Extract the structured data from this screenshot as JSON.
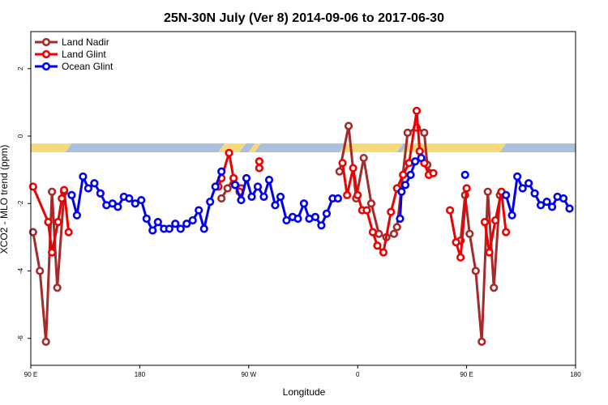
{
  "chart_data": {
    "type": "line",
    "title": "25N-30N July (Ver 8)   2014-09-06 to 2017-06-30",
    "xlabel": "Longitude",
    "ylabel": "XCO2 - MLO trend (ppm)",
    "xlim": [
      0,
      360
    ],
    "ylim": [
      -6.8,
      3.1
    ],
    "xticks": [
      {
        "pos": 0,
        "label": "90 E"
      },
      {
        "pos": 72,
        "label": "180"
      },
      {
        "pos": 144,
        "label": "90 W"
      },
      {
        "pos": 216,
        "label": "0"
      },
      {
        "pos": 288,
        "label": "90 E"
      },
      {
        "pos": 360,
        "label": "180"
      }
    ],
    "yticks": [
      {
        "value": 2,
        "label": "2"
      },
      {
        "value": 0,
        "label": "0"
      },
      {
        "value": -2,
        "label": "-2"
      },
      {
        "value": -4,
        "label": "-4"
      },
      {
        "value": -6,
        "label": "-6"
      }
    ],
    "legend_position": "top-left",
    "grid": false,
    "surface_band": {
      "y_range": [
        -0.48,
        -0.22
      ],
      "colors": {
        "land": "#f5d97a",
        "ocean": "#a9bfdc"
      },
      "segments": [
        {
          "x0": 0,
          "x1": 25,
          "type": "land"
        },
        {
          "x0": 25,
          "x1": 126,
          "type": "ocean"
        },
        {
          "x0": 126,
          "x1": 140,
          "type": "land"
        },
        {
          "x0": 140,
          "x1": 146,
          "type": "ocean"
        },
        {
          "x0": 146,
          "x1": 150,
          "type": "land"
        },
        {
          "x0": 150,
          "x1": 206,
          "type": "ocean"
        },
        {
          "x0": 206,
          "x1": 244,
          "type": "land"
        },
        {
          "x0": 244,
          "x1": 247,
          "type": "ocean"
        },
        {
          "x0": 247,
          "x1": 312,
          "type": "land"
        },
        {
          "x0": 312,
          "x1": 360,
          "type": "ocean"
        }
      ]
    },
    "series": [
      {
        "name": "Land Nadir",
        "color": "#a52a2a",
        "segments": [
          [
            [
              1.5,
              -2.85
            ],
            [
              6,
              -4.0
            ],
            [
              10,
              -6.1
            ],
            [
              14,
              -1.65
            ],
            [
              17.5,
              -4.5
            ],
            [
              22,
              -1.65
            ]
          ],
          [
            [
              126,
              -1.85
            ],
            [
              130,
              -1.55
            ],
            [
              134,
              -1.25
            ],
            [
              139,
              -1.55
            ]
          ],
          [
            [
              151,
              -0.75
            ],
            [
              151,
              -0.95
            ]
          ],
          [
            [
              204,
              -1.05
            ],
            [
              210,
              0.3
            ],
            [
              215,
              -1.85
            ],
            [
              220,
              -0.65
            ],
            [
              225,
              -2.0
            ],
            [
              230,
              -2.9
            ],
            [
              235,
              -3.0
            ],
            [
              240,
              -2.9
            ],
            [
              242,
              -2.7
            ],
            [
              249,
              0.1
            ],
            [
              255,
              0.25
            ],
            [
              260,
              0.1
            ],
            [
              262,
              -0.85
            ],
            [
              264,
              -1.1
            ]
          ],
          [
            [
              284,
              -3.1
            ],
            [
              287,
              -1.75
            ],
            [
              290,
              -2.9
            ],
            [
              294,
              -4.0
            ],
            [
              298,
              -6.1
            ],
            [
              302,
              -1.65
            ],
            [
              306,
              -4.5
            ],
            [
              310,
              -1.75
            ]
          ]
        ]
      },
      {
        "name": "Land Glint",
        "color": "#ee0000",
        "segments": [
          [
            [
              1.5,
              -1.5
            ],
            [
              11.5,
              -2.55
            ],
            [
              14,
              -3.45
            ],
            [
              18,
              -2.55
            ],
            [
              20.5,
              -1.85
            ],
            [
              22,
              -1.6
            ],
            [
              25,
              -2.85
            ]
          ],
          [
            [
              124,
              -1.5
            ],
            [
              126,
              -1.25
            ],
            [
              131,
              -0.5
            ],
            [
              134,
              -1.25
            ],
            [
              138,
              -1.65
            ]
          ],
          [
            [
              151,
              -0.95
            ],
            [
              151,
              -0.75
            ]
          ],
          [
            [
              206,
              -0.8
            ],
            [
              209,
              -1.75
            ],
            [
              213,
              -0.95
            ],
            [
              216,
              -1.75
            ],
            [
              219,
              -2.2
            ],
            [
              222,
              -2.2
            ],
            [
              226,
              -2.85
            ],
            [
              229,
              -3.25
            ],
            [
              233,
              -3.45
            ],
            [
              238,
              -2.25
            ],
            [
              242,
              -1.55
            ],
            [
              246,
              -1.15
            ],
            [
              250,
              -0.8
            ],
            [
              255,
              0.75
            ],
            [
              257,
              -0.45
            ],
            [
              260,
              -0.8
            ],
            [
              263,
              -1.15
            ],
            [
              266,
              -1.1
            ]
          ],
          [
            [
              277,
              -2.2
            ],
            [
              281,
              -3.15
            ],
            [
              284,
              -3.6
            ],
            [
              288,
              -1.55
            ]
          ],
          [
            [
              300,
              -2.55
            ],
            [
              303,
              -3.45
            ],
            [
              307,
              -2.5
            ],
            [
              311,
              -1.65
            ],
            [
              314,
              -2.85
            ]
          ]
        ]
      },
      {
        "name": "Ocean Glint",
        "color": "#0000ee",
        "segments": [
          [
            [
              27,
              -1.75
            ],
            [
              30.5,
              -2.35
            ],
            [
              34.5,
              -1.2
            ],
            [
              38,
              -1.55
            ],
            [
              42,
              -1.4
            ],
            [
              46,
              -1.7
            ],
            [
              50,
              -2.05
            ],
            [
              54,
              -2.0
            ],
            [
              57.5,
              -2.1
            ],
            [
              61.5,
              -1.8
            ],
            [
              65,
              -1.85
            ],
            [
              69,
              -2.0
            ],
            [
              73,
              -1.9
            ],
            [
              76.5,
              -2.45
            ],
            [
              80.5,
              -2.8
            ],
            [
              84,
              -2.55
            ],
            [
              88,
              -2.75
            ],
            [
              91.5,
              -2.75
            ],
            [
              95.5,
              -2.6
            ],
            [
              99,
              -2.75
            ],
            [
              103,
              -2.6
            ],
            [
              107,
              -2.5
            ],
            [
              111,
              -2.2
            ],
            [
              114.5,
              -2.75
            ],
            [
              118.5,
              -1.95
            ],
            [
              122,
              -1.5
            ],
            [
              126,
              -1.05
            ]
          ],
          [
            [
              135,
              -1.45
            ],
            [
              139,
              -1.9
            ],
            [
              142.5,
              -1.25
            ],
            [
              146,
              -1.8
            ],
            [
              150,
              -1.5
            ],
            [
              154,
              -1.8
            ],
            [
              157.5,
              -1.3
            ],
            [
              161.5,
              -2.05
            ],
            [
              165,
              -1.8
            ],
            [
              169,
              -2.5
            ],
            [
              173,
              -2.4
            ],
            [
              176.5,
              -2.45
            ],
            [
              180.5,
              -2.0
            ],
            [
              184,
              -2.45
            ],
            [
              188,
              -2.4
            ],
            [
              192,
              -2.65
            ],
            [
              195.5,
              -2.3
            ],
            [
              199.5,
              -1.85
            ],
            [
              203,
              -1.85
            ]
          ],
          [
            [
              244,
              -2.45
            ],
            [
              245,
              -1.65
            ],
            [
              247.5,
              -1.45
            ],
            [
              251,
              -1.15
            ],
            [
              254,
              -0.75
            ],
            [
              258,
              -0.65
            ]
          ],
          [
            [
              287,
              -1.15
            ]
          ],
          [
            [
              314,
              -1.75
            ],
            [
              318,
              -2.35
            ],
            [
              321.5,
              -1.2
            ],
            [
              325,
              -1.55
            ],
            [
              329,
              -1.4
            ],
            [
              333,
              -1.7
            ],
            [
              337,
              -2.05
            ],
            [
              341,
              -1.95
            ],
            [
              344.5,
              -2.1
            ],
            [
              348,
              -1.8
            ],
            [
              352,
              -1.85
            ],
            [
              356,
              -2.15
            ]
          ]
        ]
      }
    ]
  }
}
